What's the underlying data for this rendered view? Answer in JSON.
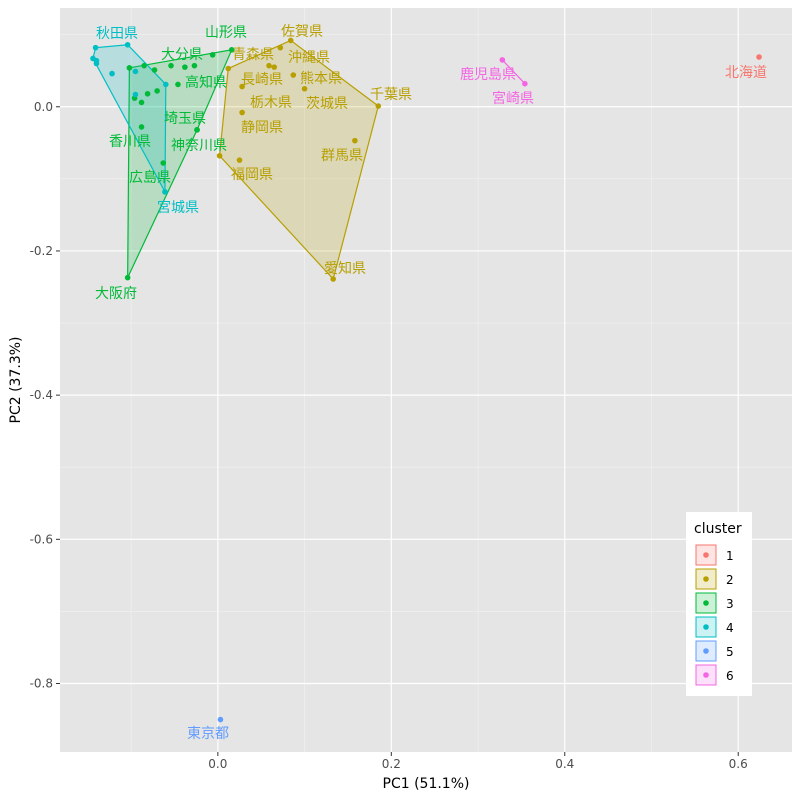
{
  "chart_data": {
    "type": "scatter",
    "title": "",
    "xlabel": "PC1 (51.1%)",
    "ylabel": "PC2 (37.3%)",
    "xlim": [
      -0.182,
      0.662
    ],
    "ylim": [
      -0.895,
      0.137
    ],
    "x_ticks": [
      0.0,
      0.2,
      0.4,
      0.6
    ],
    "x_tick_labels": [
      "0.0",
      "0.2",
      "0.4",
      "0.6"
    ],
    "y_ticks": [
      0.0,
      -0.2,
      -0.4,
      -0.6,
      -0.8
    ],
    "y_tick_labels": [
      "0.0",
      "-0.2",
      "-0.4",
      "-0.6",
      "-0.8"
    ],
    "grid": true,
    "convex_hulls": true,
    "legend": {
      "title": "cluster",
      "placement": "bottom-right",
      "entries": [
        "1",
        "2",
        "3",
        "4",
        "5",
        "6"
      ]
    },
    "colors": {
      "1": "#F8766D",
      "2": "#B79F00",
      "3": "#00BA38",
      "4": "#00BFC4",
      "5": "#619CFF",
      "6": "#F564E3"
    },
    "points": [
      {
        "name": "北海道",
        "cluster": "1",
        "x": 0.624,
        "y": 0.069
      },
      {
        "name": "青森県",
        "cluster": "2",
        "x": 0.012,
        "y": 0.053
      },
      {
        "name": "沖縄県",
        "cluster": "2",
        "x": 0.072,
        "y": 0.082
      },
      {
        "name": "佐賀県",
        "cluster": "2",
        "x": 0.084,
        "y": 0.092
      },
      {
        "name": "栃木県",
        "cluster": "2",
        "x": 0.059,
        "y": 0.057
      },
      {
        "name": "",
        "cluster": "2",
        "x": 0.065,
        "y": 0.055
      },
      {
        "name": "熊本県",
        "cluster": "2",
        "x": 0.087,
        "y": 0.044
      },
      {
        "name": "茨城県",
        "cluster": "2",
        "x": 0.1,
        "y": 0.025
      },
      {
        "name": "長崎県",
        "cluster": "2",
        "x": 0.028,
        "y": 0.028
      },
      {
        "name": "静岡県",
        "cluster": "2",
        "x": 0.028,
        "y": -0.008
      },
      {
        "name": "",
        "cluster": "2",
        "x": 0.002,
        "y": -0.068
      },
      {
        "name": "福岡県",
        "cluster": "2",
        "x": 0.025,
        "y": -0.074
      },
      {
        "name": "千葉県",
        "cluster": "2",
        "x": 0.185,
        "y": 0.001
      },
      {
        "name": "群馬県",
        "cluster": "2",
        "x": 0.158,
        "y": -0.047
      },
      {
        "name": "愛知県",
        "cluster": "2",
        "x": 0.133,
        "y": -0.239
      },
      {
        "name": "山形県",
        "cluster": "3",
        "x": 0.016,
        "y": 0.079
      },
      {
        "name": "大分県",
        "cluster": "3",
        "x": -0.006,
        "y": 0.072
      },
      {
        "name": "",
        "cluster": "3",
        "x": -0.027,
        "y": 0.057
      },
      {
        "name": "",
        "cluster": "3",
        "x": -0.038,
        "y": 0.055
      },
      {
        "name": "",
        "cluster": "3",
        "x": -0.054,
        "y": 0.057
      },
      {
        "name": "",
        "cluster": "3",
        "x": -0.073,
        "y": 0.051
      },
      {
        "name": "",
        "cluster": "3",
        "x": -0.085,
        "y": 0.057
      },
      {
        "name": "",
        "cluster": "3",
        "x": -0.102,
        "y": 0.054
      },
      {
        "name": "高知県",
        "cluster": "3",
        "x": -0.046,
        "y": 0.031
      },
      {
        "name": "",
        "cluster": "3",
        "x": -0.07,
        "y": 0.022
      },
      {
        "name": "",
        "cluster": "3",
        "x": -0.081,
        "y": 0.018
      },
      {
        "name": "",
        "cluster": "3",
        "x": -0.096,
        "y": 0.012
      },
      {
        "name": "",
        "cluster": "3",
        "x": -0.088,
        "y": 0.006
      },
      {
        "name": "香川県",
        "cluster": "3",
        "x": -0.088,
        "y": -0.028
      },
      {
        "name": "埼玉県",
        "cluster": "3",
        "x": -0.024,
        "y": -0.032
      },
      {
        "name": "神奈川県",
        "cluster": "3",
        "x": -0.024,
        "y": -0.032
      },
      {
        "name": "広島県",
        "cluster": "3",
        "x": -0.063,
        "y": -0.078
      },
      {
        "name": "大阪府",
        "cluster": "3",
        "x": -0.104,
        "y": -0.237
      },
      {
        "name": "秋田県",
        "cluster": "4",
        "x": -0.141,
        "y": 0.082
      },
      {
        "name": "",
        "cluster": "4",
        "x": -0.104,
        "y": 0.086
      },
      {
        "name": "",
        "cluster": "4",
        "x": -0.144,
        "y": 0.067
      },
      {
        "name": "",
        "cluster": "4",
        "x": -0.14,
        "y": 0.064
      },
      {
        "name": "",
        "cluster": "4",
        "x": -0.14,
        "y": 0.06
      },
      {
        "name": "",
        "cluster": "4",
        "x": -0.122,
        "y": 0.046
      },
      {
        "name": "",
        "cluster": "4",
        "x": -0.095,
        "y": 0.049
      },
      {
        "name": "",
        "cluster": "4",
        "x": -0.095,
        "y": 0.017
      },
      {
        "name": "",
        "cluster": "4",
        "x": -0.06,
        "y": 0.031
      },
      {
        "name": "宮城県",
        "cluster": "4",
        "x": -0.061,
        "y": -0.118
      },
      {
        "name": "東京都",
        "cluster": "5",
        "x": 0.003,
        "y": -0.85
      },
      {
        "name": "鹿児島県",
        "cluster": "6",
        "x": 0.328,
        "y": 0.065
      },
      {
        "name": "宮崎県",
        "cluster": "6",
        "x": 0.354,
        "y": 0.032
      }
    ]
  }
}
